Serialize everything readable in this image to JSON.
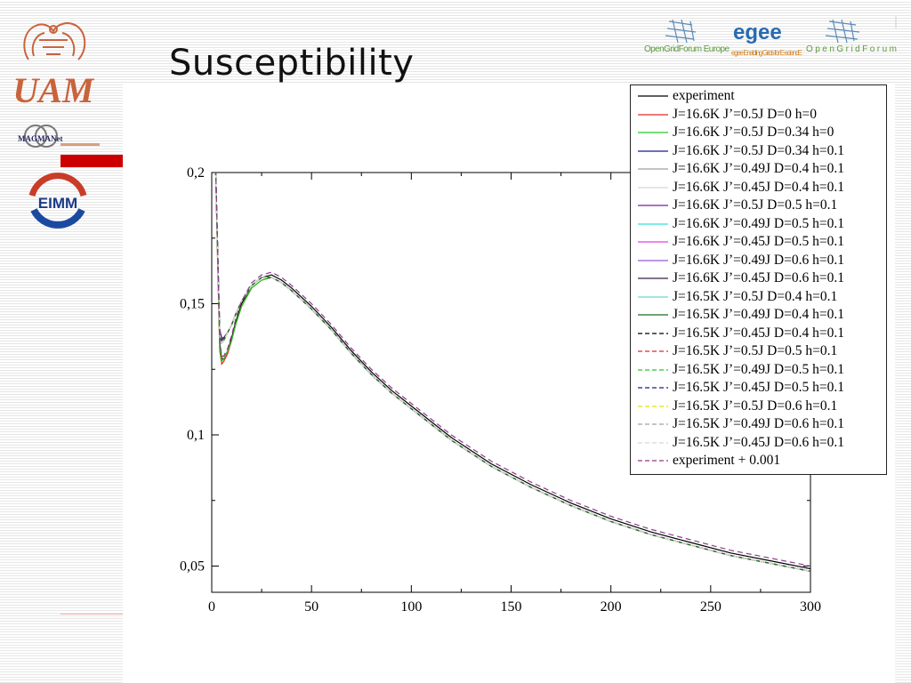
{
  "slide": {
    "title": "Susceptibility"
  },
  "logos": {
    "uam": "UAM",
    "magmanet": "MAGMANet",
    "eimm": "EIMM",
    "partners": [
      "OpenGridForum Europe",
      "egee Enabling Grids for E-sciencE",
      "OpenGridForum"
    ]
  },
  "colors": {
    "accent_red": "#cc0000",
    "uam_orange": "#c8643c"
  },
  "chart_data": {
    "type": "line",
    "xlim": [
      0,
      300
    ],
    "ylim": [
      0.04,
      0.2
    ],
    "xticks": [
      0,
      50,
      100,
      150,
      200,
      250,
      300
    ],
    "xtick_labels": [
      "0",
      "50",
      "100",
      "150",
      "200",
      "250",
      "300"
    ],
    "yticks": [
      0.05,
      0.1,
      0.15,
      0.2
    ],
    "ytick_labels": [
      "0,05",
      "0,1",
      "0,15",
      "0,2"
    ],
    "grid": false,
    "legend_position": "top-right",
    "x": [
      2,
      3,
      4,
      5,
      6,
      8,
      10,
      12,
      15,
      20,
      25,
      30,
      35,
      40,
      50,
      60,
      70,
      80,
      90,
      100,
      120,
      140,
      160,
      180,
      200,
      220,
      240,
      260,
      280,
      300
    ],
    "series": [
      {
        "name": "experiment",
        "color": "#000000",
        "dash": "solid",
        "values": [
          0.2,
          0.17,
          0.135,
          0.129,
          0.129,
          0.132,
          0.137,
          0.143,
          0.15,
          0.157,
          0.16,
          0.161,
          0.159,
          0.156,
          0.149,
          0.141,
          0.132,
          0.124,
          0.117,
          0.111,
          0.099,
          0.089,
          0.081,
          0.074,
          0.068,
          0.063,
          0.059,
          0.055,
          0.052,
          0.049
        ]
      },
      {
        "name": "J=16.6K J’=0.5J D=0 h=0",
        "color": "#e8262a",
        "dash": "solid",
        "values": [
          0.2,
          0.165,
          0.132,
          0.127,
          0.128,
          0.131,
          0.136,
          0.142,
          0.149,
          0.156,
          0.159,
          0.16,
          0.158,
          0.155,
          0.148,
          0.14,
          0.131,
          0.123,
          0.116,
          0.11,
          0.098,
          0.088,
          0.08,
          0.073,
          0.067,
          0.062,
          0.058,
          0.054,
          0.051,
          0.048
        ]
      },
      {
        "name": "J=16.6K J’=0.5J D=0.34 h=0",
        "color": "#22cc22",
        "dash": "solid",
        "values": [
          0.2,
          0.166,
          0.133,
          0.128,
          0.129,
          0.132,
          0.136,
          0.142,
          0.149,
          0.156,
          0.159,
          0.16,
          0.158,
          0.155,
          0.148,
          0.14,
          0.131,
          0.123,
          0.116,
          0.11,
          0.098,
          0.088,
          0.08,
          0.073,
          0.067,
          0.062,
          0.058,
          0.054,
          0.051,
          0.048
        ]
      },
      {
        "name": "J=16.6K J’=0.5J D=0.34 h=0.1",
        "color": "#1a1a8c",
        "dash": "solid",
        "values": [
          0.2,
          0.17,
          0.14,
          0.137,
          0.137,
          0.139,
          0.142,
          0.146,
          0.151,
          0.157,
          0.16,
          0.16,
          0.158,
          0.155,
          0.148,
          0.14,
          0.131,
          0.123,
          0.116,
          0.11,
          0.098,
          0.088,
          0.08,
          0.073,
          0.067,
          0.062,
          0.058,
          0.054,
          0.051,
          0.048
        ]
      },
      {
        "name": "J=16.6K J’=0.49J D=0.4 h=0.1",
        "color": "#a0a0a0",
        "dash": "solid",
        "values": [
          0.2,
          0.17,
          0.139,
          0.136,
          0.137,
          0.139,
          0.142,
          0.146,
          0.151,
          0.157,
          0.16,
          0.16,
          0.158,
          0.155,
          0.148,
          0.14,
          0.131,
          0.123,
          0.116,
          0.11,
          0.098,
          0.088,
          0.08,
          0.073,
          0.067,
          0.062,
          0.058,
          0.054,
          0.051,
          0.048
        ]
      },
      {
        "name": "J=16.6K J’=0.45J D=0.4 h=0.1",
        "color": "#d8d8d8",
        "dash": "solid",
        "values": [
          0.2,
          0.17,
          0.139,
          0.136,
          0.137,
          0.139,
          0.142,
          0.146,
          0.151,
          0.157,
          0.16,
          0.16,
          0.158,
          0.155,
          0.148,
          0.14,
          0.131,
          0.123,
          0.116,
          0.11,
          0.098,
          0.088,
          0.08,
          0.073,
          0.067,
          0.062,
          0.058,
          0.054,
          0.051,
          0.048
        ]
      },
      {
        "name": "J=16.6K J’=0.5J D=0.5 h=0.1",
        "color": "#7a1f9e",
        "dash": "solid",
        "values": [
          0.2,
          0.17,
          0.14,
          0.137,
          0.137,
          0.139,
          0.142,
          0.146,
          0.151,
          0.157,
          0.16,
          0.16,
          0.158,
          0.155,
          0.148,
          0.14,
          0.131,
          0.123,
          0.116,
          0.11,
          0.098,
          0.088,
          0.08,
          0.073,
          0.067,
          0.062,
          0.058,
          0.054,
          0.051,
          0.048
        ]
      },
      {
        "name": "J=16.6K J’=0.49J D=0.5 h=0.1",
        "color": "#33dddd",
        "dash": "solid",
        "values": [
          0.2,
          0.17,
          0.139,
          0.136,
          0.137,
          0.139,
          0.142,
          0.146,
          0.151,
          0.157,
          0.16,
          0.16,
          0.158,
          0.155,
          0.148,
          0.14,
          0.131,
          0.123,
          0.116,
          0.11,
          0.098,
          0.088,
          0.08,
          0.073,
          0.067,
          0.062,
          0.058,
          0.054,
          0.051,
          0.048
        ]
      },
      {
        "name": "J=16.6K J’=0.45J D=0.5 h=0.1",
        "color": "#e040e0",
        "dash": "solid",
        "values": [
          0.2,
          0.17,
          0.139,
          0.136,
          0.137,
          0.139,
          0.142,
          0.146,
          0.151,
          0.157,
          0.16,
          0.16,
          0.158,
          0.155,
          0.148,
          0.14,
          0.131,
          0.123,
          0.116,
          0.11,
          0.098,
          0.088,
          0.08,
          0.073,
          0.067,
          0.062,
          0.058,
          0.054,
          0.051,
          0.048
        ]
      },
      {
        "name": "J=16.6K J’=0.49J D=0.6 h=0.1",
        "color": "#9b59d0",
        "dash": "solid",
        "values": [
          0.2,
          0.17,
          0.139,
          0.136,
          0.137,
          0.139,
          0.142,
          0.146,
          0.151,
          0.157,
          0.16,
          0.16,
          0.158,
          0.155,
          0.148,
          0.14,
          0.131,
          0.123,
          0.116,
          0.11,
          0.098,
          0.088,
          0.08,
          0.073,
          0.067,
          0.062,
          0.058,
          0.054,
          0.051,
          0.048
        ]
      },
      {
        "name": "J=16.6K J’=0.45J D=0.6 h=0.1",
        "color": "#3a1f4a",
        "dash": "solid",
        "values": [
          0.2,
          0.17,
          0.139,
          0.136,
          0.137,
          0.139,
          0.142,
          0.146,
          0.151,
          0.157,
          0.16,
          0.16,
          0.158,
          0.155,
          0.148,
          0.14,
          0.131,
          0.123,
          0.116,
          0.11,
          0.098,
          0.088,
          0.08,
          0.073,
          0.067,
          0.062,
          0.058,
          0.054,
          0.051,
          0.048
        ]
      },
      {
        "name": "J=16.5K J’=0.5J D=0.4 h=0.1",
        "color": "#66d8d0",
        "dash": "solid",
        "values": [
          0.2,
          0.17,
          0.138,
          0.135,
          0.136,
          0.139,
          0.142,
          0.146,
          0.151,
          0.157,
          0.16,
          0.16,
          0.158,
          0.155,
          0.148,
          0.14,
          0.131,
          0.123,
          0.116,
          0.11,
          0.098,
          0.088,
          0.08,
          0.073,
          0.067,
          0.062,
          0.058,
          0.054,
          0.051,
          0.048
        ]
      },
      {
        "name": "J=16.5K J’=0.49J D=0.4 h=0.1",
        "color": "#1a6b1a",
        "dash": "solid",
        "values": [
          0.2,
          0.17,
          0.138,
          0.135,
          0.136,
          0.139,
          0.142,
          0.146,
          0.151,
          0.157,
          0.16,
          0.16,
          0.158,
          0.155,
          0.148,
          0.14,
          0.131,
          0.123,
          0.116,
          0.11,
          0.098,
          0.088,
          0.08,
          0.073,
          0.067,
          0.062,
          0.058,
          0.054,
          0.051,
          0.048
        ]
      },
      {
        "name": "J=16.5K J’=0.45J D=0.4 h=0.1",
        "color": "#000000",
        "dash": "dashed",
        "values": [
          0.2,
          0.17,
          0.138,
          0.135,
          0.136,
          0.139,
          0.142,
          0.146,
          0.151,
          0.157,
          0.16,
          0.16,
          0.158,
          0.155,
          0.148,
          0.14,
          0.131,
          0.123,
          0.116,
          0.11,
          0.098,
          0.088,
          0.08,
          0.073,
          0.067,
          0.062,
          0.058,
          0.054,
          0.051,
          0.048
        ]
      },
      {
        "name": "J=16.5K J’=0.5J D=0.5 h=0.1",
        "color": "#e8262a",
        "dash": "dashed",
        "values": [
          0.2,
          0.17,
          0.138,
          0.135,
          0.136,
          0.139,
          0.142,
          0.146,
          0.151,
          0.157,
          0.16,
          0.16,
          0.158,
          0.155,
          0.148,
          0.14,
          0.131,
          0.123,
          0.116,
          0.11,
          0.098,
          0.088,
          0.08,
          0.073,
          0.067,
          0.062,
          0.058,
          0.054,
          0.051,
          0.048
        ]
      },
      {
        "name": "J=16.5K J’=0.49J D=0.5 h=0.1",
        "color": "#22cc22",
        "dash": "dashed",
        "values": [
          0.2,
          0.17,
          0.138,
          0.135,
          0.136,
          0.139,
          0.142,
          0.146,
          0.151,
          0.157,
          0.16,
          0.16,
          0.158,
          0.155,
          0.148,
          0.14,
          0.131,
          0.123,
          0.116,
          0.11,
          0.098,
          0.088,
          0.08,
          0.073,
          0.067,
          0.062,
          0.058,
          0.054,
          0.051,
          0.048
        ]
      },
      {
        "name": "J=16.5K J’=0.45J D=0.5 h=0.1",
        "color": "#1a1a8c",
        "dash": "dashed",
        "values": [
          0.2,
          0.17,
          0.138,
          0.135,
          0.136,
          0.139,
          0.142,
          0.146,
          0.151,
          0.157,
          0.16,
          0.16,
          0.158,
          0.155,
          0.148,
          0.14,
          0.131,
          0.123,
          0.116,
          0.11,
          0.098,
          0.088,
          0.08,
          0.073,
          0.067,
          0.062,
          0.058,
          0.054,
          0.051,
          0.048
        ]
      },
      {
        "name": "J=16.5K J’=0.5J D=0.6 h=0.1",
        "color": "#e8e000",
        "dash": "dashed",
        "values": [
          0.2,
          0.17,
          0.138,
          0.135,
          0.136,
          0.139,
          0.142,
          0.146,
          0.151,
          0.157,
          0.16,
          0.16,
          0.158,
          0.155,
          0.148,
          0.14,
          0.131,
          0.123,
          0.116,
          0.11,
          0.098,
          0.088,
          0.08,
          0.073,
          0.067,
          0.062,
          0.058,
          0.054,
          0.051,
          0.048
        ]
      },
      {
        "name": "J=16.5K J’=0.49J D=0.6 h=0.1",
        "color": "#a0a0a0",
        "dash": "dashed",
        "values": [
          0.2,
          0.17,
          0.138,
          0.135,
          0.136,
          0.139,
          0.142,
          0.146,
          0.151,
          0.157,
          0.16,
          0.16,
          0.158,
          0.155,
          0.148,
          0.14,
          0.131,
          0.123,
          0.116,
          0.11,
          0.098,
          0.088,
          0.08,
          0.073,
          0.067,
          0.062,
          0.058,
          0.054,
          0.051,
          0.048
        ]
      },
      {
        "name": "J=16.5K J’=0.45J D=0.6 h=0.1",
        "color": "#d8d8d8",
        "dash": "dashed",
        "values": [
          0.2,
          0.17,
          0.138,
          0.135,
          0.136,
          0.139,
          0.142,
          0.146,
          0.151,
          0.157,
          0.16,
          0.16,
          0.158,
          0.155,
          0.148,
          0.14,
          0.131,
          0.123,
          0.116,
          0.11,
          0.098,
          0.088,
          0.08,
          0.073,
          0.067,
          0.062,
          0.058,
          0.054,
          0.051,
          0.048
        ]
      },
      {
        "name": "experiment + 0.001",
        "color": "#8e3a8e",
        "dash": "dashed",
        "values": [
          0.201,
          0.171,
          0.136,
          0.13,
          0.13,
          0.133,
          0.138,
          0.144,
          0.151,
          0.158,
          0.161,
          0.162,
          0.16,
          0.157,
          0.15,
          0.142,
          0.133,
          0.125,
          0.118,
          0.112,
          0.1,
          0.09,
          0.082,
          0.075,
          0.069,
          0.064,
          0.06,
          0.056,
          0.053,
          0.05
        ]
      }
    ]
  }
}
